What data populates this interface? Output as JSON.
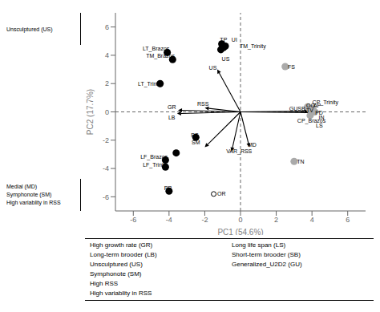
{
  "chart_data": {
    "type": "scatter",
    "xlabel": "PC1 (54.6%)",
    "ylabel": "PC2 (17.7%)",
    "xlim": [
      -7,
      7
    ],
    "ylim": [
      -7,
      7
    ],
    "xticks": [
      -6,
      -4,
      -2,
      0,
      2,
      4,
      6
    ],
    "yticks": [
      -6,
      -4,
      -2,
      0,
      2,
      4,
      6
    ],
    "grid": false,
    "ref_lines": {
      "x": [
        0
      ],
      "y": [
        0
      ]
    },
    "series": [
      {
        "color": "#000000",
        "marker": "circle",
        "x": [
          -4.1,
          -3.8,
          -4.5,
          -2.5,
          -3.6,
          -4.2,
          -4.2,
          -4.0,
          -1.05,
          -0.95,
          -0.85,
          -1.1
        ],
        "y": [
          4.2,
          3.7,
          2.0,
          -1.8,
          -2.9,
          -3.4,
          -3.9,
          -5.6,
          4.8,
          4.55,
          4.65,
          4.4
        ]
      },
      {
        "color": "#aaaaaa",
        "marker": "circle",
        "x": [
          2.5,
          3.0,
          3.75,
          3.9,
          4.05,
          4.15,
          3.9
        ],
        "y": [
          3.2,
          -3.5,
          0.35,
          0.15,
          0.25,
          0.0,
          -0.25
        ]
      },
      {
        "color": "#000000",
        "marker": "open",
        "x": [
          -1.5
        ],
        "y": [
          -5.8
        ]
      }
    ],
    "arrows": [
      {
        "x0": 0,
        "y0": 0,
        "x1": -1.3,
        "y1": 3.0
      },
      {
        "x0": 0,
        "y0": 0,
        "x1": -3.5,
        "y1": 0.12
      },
      {
        "x0": 0,
        "y0": 0,
        "x1": -3.55,
        "y1": -0.12
      },
      {
        "x0": 0,
        "y0": 0,
        "x1": -2.0,
        "y1": 0.28
      },
      {
        "x0": 0,
        "y0": 0,
        "x1": 0.5,
        "y1": -2.5
      },
      {
        "x0": 0,
        "y0": 0,
        "x1": -2.0,
        "y1": -2.5
      },
      {
        "x0": 0,
        "y0": 0,
        "x1": -0.5,
        "y1": -2.8
      },
      {
        "x0": 0,
        "y0": 0,
        "x1": 4.0,
        "y1": -0.05
      },
      {
        "x0": 0,
        "y0": 0,
        "x1": 3.8,
        "y1": 0.05
      }
    ],
    "annotations": [
      {
        "text": "GR",
        "x": -3.85,
        "y": 0.35,
        "align": "center"
      },
      {
        "text": "LB",
        "x": -3.85,
        "y": -0.38,
        "align": "center"
      },
      {
        "text": "RSS",
        "x": -2.1,
        "y": 0.55,
        "align": "center"
      },
      {
        "text": "US",
        "x": -1.55,
        "y": 3.1,
        "align": "center"
      },
      {
        "text": "MD",
        "x": 0.65,
        "y": -2.35,
        "align": "center"
      },
      {
        "text": "SM",
        "x": -2.5,
        "y": -2.15,
        "align": "center"
      },
      {
        "text": "VAR_RSS",
        "x": -0.08,
        "y": -2.8,
        "align": "center"
      },
      {
        "text": "LT_Brazos",
        "x": -3.98,
        "y": 4.45,
        "align": "right"
      },
      {
        "text": "TM_Brazos",
        "x": -3.68,
        "y": 3.95,
        "align": "right"
      },
      {
        "text": "LT_Trinity",
        "x": -4.38,
        "y": 2.0,
        "align": "right"
      },
      {
        "text": "PS",
        "x": -2.35,
        "y": -1.65,
        "align": "right"
      },
      {
        "text": "LF_Brazos",
        "x": -4.08,
        "y": -3.2,
        "align": "right"
      },
      {
        "text": "LF_Trinity",
        "x": -4.08,
        "y": -3.72,
        "align": "right"
      },
      {
        "text": "PP",
        "x": -3.85,
        "y": -5.4,
        "align": "right"
      },
      {
        "text": "TP",
        "x": -1.15,
        "y": 5.1,
        "align": "left"
      },
      {
        "text": "UI",
        "x": -0.5,
        "y": 5.1,
        "align": "left"
      },
      {
        "text": "TM_Trinity",
        "x": -0.05,
        "y": 4.65,
        "align": "left"
      },
      {
        "text": "US",
        "x": -1.05,
        "y": 3.75,
        "align": "left"
      },
      {
        "text": "FS",
        "x": 2.65,
        "y": 3.2,
        "align": "left"
      },
      {
        "text": "TN",
        "x": 3.15,
        "y": -3.5,
        "align": "left"
      },
      {
        "text": "GU",
        "x": 2.73,
        "y": 0.22,
        "align": "left"
      },
      {
        "text": "SB",
        "x": 3.2,
        "y": 0.22,
        "align": "left"
      },
      {
        "text": "OO",
        "x": 3.68,
        "y": 0.48,
        "align": "left"
      },
      {
        "text": "TV",
        "x": 3.68,
        "y": 0.12,
        "align": "left"
      },
      {
        "text": "AP",
        "x": 4.08,
        "y": 0.45,
        "align": "left"
      },
      {
        "text": "CP_Trinity",
        "x": 4.02,
        "y": 0.68,
        "align": "left"
      },
      {
        "text": "PD",
        "x": 4.18,
        "y": -0.08,
        "align": "left"
      },
      {
        "text": "IN",
        "x": 4.38,
        "y": -0.38,
        "align": "left"
      },
      {
        "text": "CP_Brazos",
        "x": 3.18,
        "y": -0.62,
        "align": "left"
      },
      {
        "text": "LS",
        "x": 4.22,
        "y": -0.95,
        "align": "left"
      },
      {
        "text": "OR",
        "x": -1.3,
        "y": -5.8,
        "align": "left"
      }
    ],
    "side_notes": {
      "top": [
        "Unsculptured (US)"
      ],
      "bottom": [
        "Medial (MD)",
        "Symphonote (SM)",
        "High variablity in RSS"
      ]
    },
    "key": {
      "left": [
        "High growth rate (GR)",
        "Long-term brooder (LB)",
        "Unsculptured (US)",
        "Symphonote (SM)",
        "High RSS",
        "High variablity in RSS"
      ],
      "right": [
        "Long life span (LS)",
        "Short-term brooder (SB)",
        "Generalized_U2D2 (GU)"
      ]
    }
  }
}
